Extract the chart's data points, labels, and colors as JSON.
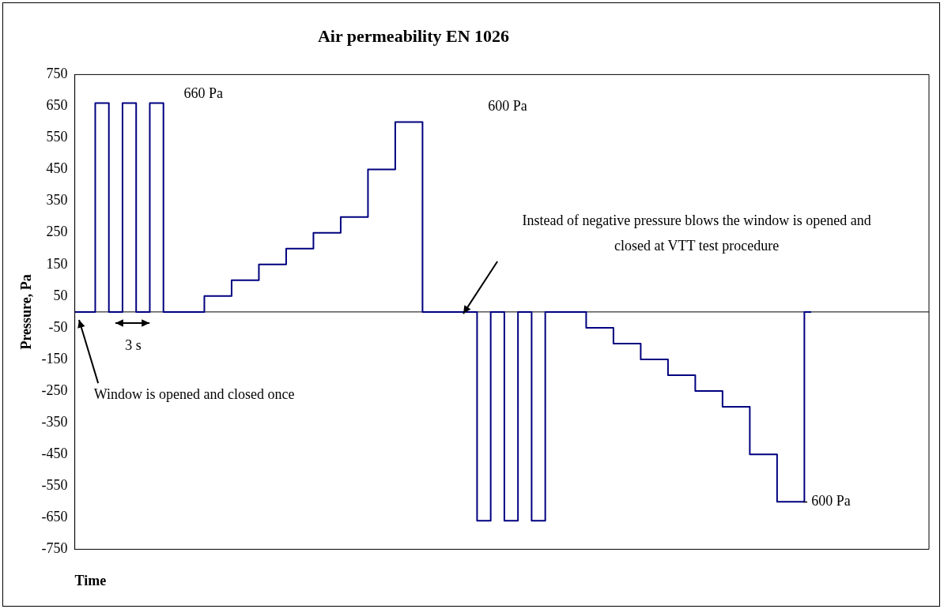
{
  "chart_data": {
    "type": "step",
    "title": "Air permeability EN 1026",
    "xlabel": "Time",
    "ylabel": "Pressure, Pa",
    "categories": [
      null,
      null,
      null,
      null,
      null,
      null,
      null,
      null,
      null,
      null,
      null,
      null,
      null,
      null,
      null,
      null,
      null,
      null,
      null,
      null,
      null,
      null,
      null,
      null,
      null,
      null,
      null,
      null,
      null,
      null,
      null,
      null,
      null,
      null,
      null,
      null,
      null,
      null,
      null,
      null,
      null,
      null,
      null,
      null,
      null,
      null,
      null,
      null,
      null,
      null,
      null,
      null,
      null,
      null,
      null
    ],
    "series": [
      {
        "color": "#000080",
        "values": [
          0,
          0,
          660,
          0,
          660,
          0,
          660,
          0,
          0,
          0,
          50,
          50,
          100,
          100,
          150,
          150,
          200,
          200,
          250,
          250,
          300,
          300,
          450,
          450,
          600,
          600,
          0,
          0,
          0,
          0,
          -660,
          0,
          -660,
          0,
          -660,
          0,
          0,
          0,
          -50,
          -50,
          -100,
          -100,
          -150,
          -150,
          -200,
          -200,
          -250,
          -250,
          -300,
          -300,
          -450,
          -450,
          -600,
          -600,
          0
        ]
      }
    ],
    "ylim": [
      -750,
      750
    ],
    "yticks": [
      -750,
      -650,
      -550,
      -450,
      -350,
      -250,
      -150,
      -50,
      50,
      150,
      250,
      350,
      450,
      550,
      650,
      750
    ],
    "tick_labels": "y",
    "grid": false,
    "legend": false,
    "marker": "none",
    "line_style": "solid",
    "ref_lines": [
      {
        "axis": "y",
        "value": 0,
        "color": "#000000"
      }
    ],
    "annotations": [
      "660 Pa",
      "600 Pa",
      "- 600 Pa",
      "3 s",
      "Window is opened and closed once",
      "Instead of negative pressure blows the window is opened and closed at VTT test procedure"
    ]
  }
}
